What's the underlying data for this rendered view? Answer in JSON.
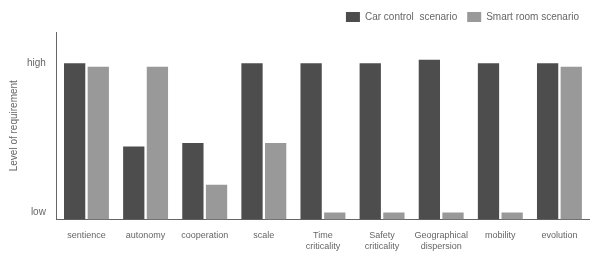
{
  "chart_data": {
    "type": "bar",
    "categories": [
      "sentience",
      "autonomy",
      "cooperation",
      "scale",
      "Time\ncriticality",
      "Safety\ncriticality",
      "Geographical\ndispersion",
      "mobility",
      "evolution"
    ],
    "series": [
      {
        "name": "Car control  scenario",
        "color": "#4d4d4d",
        "values": [
          0.9,
          0.42,
          0.44,
          0.9,
          0.9,
          0.9,
          0.92,
          0.9,
          0.9
        ]
      },
      {
        "name": "Smart room scenario",
        "color": "#999999",
        "values": [
          0.88,
          0.88,
          0.2,
          0.44,
          0.04,
          0.04,
          0.04,
          0.04,
          0.88
        ]
      }
    ],
    "ylabel": "Level of requirement",
    "ylim": [
      0,
      1.08
    ],
    "yticks": [
      {
        "value": 0.04,
        "label": "low"
      },
      {
        "value": 0.9,
        "label": "high"
      }
    ],
    "grid": false,
    "legend": "upper right"
  }
}
